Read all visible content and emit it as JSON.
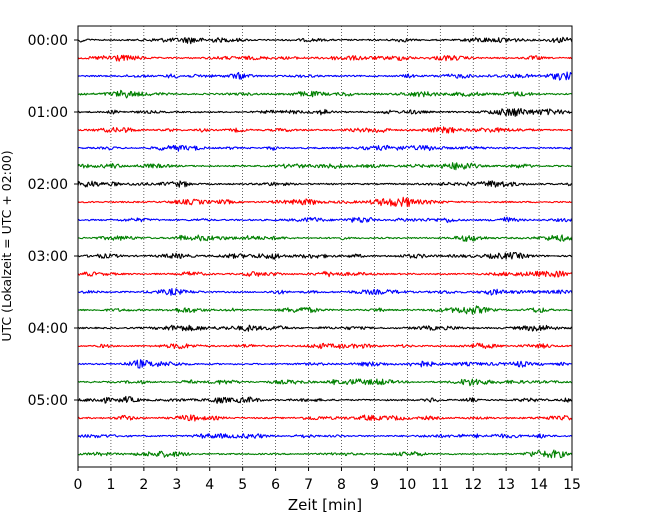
{
  "chart_data": {
    "type": "line",
    "xlabel": "Zeit  [min]",
    "ylabel": "UTC (Lokalzeit = UTC + 02:00)",
    "xlim": [
      0,
      15
    ],
    "x_ticks": [
      "0",
      "1",
      "2",
      "3",
      "4",
      "5",
      "6",
      "7",
      "8",
      "9",
      "10",
      "11",
      "12",
      "13",
      "14",
      "15"
    ],
    "x_grid": true,
    "grid_style": "dotted",
    "y_tick_labels": [
      "00:00",
      "01:00",
      "02:00",
      "03:00",
      "04:00",
      "05:00"
    ],
    "trace_count": 24,
    "trace_interval_minutes": 15,
    "trace_colors": [
      "#000000",
      "#ff0000",
      "#0000ff",
      "#008000"
    ],
    "series": [
      {
        "start": "00:00",
        "color": "#000000"
      },
      {
        "start": "00:15",
        "color": "#ff0000"
      },
      {
        "start": "00:30",
        "color": "#0000ff"
      },
      {
        "start": "00:45",
        "color": "#008000"
      },
      {
        "start": "01:00",
        "color": "#000000"
      },
      {
        "start": "01:15",
        "color": "#ff0000"
      },
      {
        "start": "01:30",
        "color": "#0000ff"
      },
      {
        "start": "01:45",
        "color": "#008000"
      },
      {
        "start": "02:00",
        "color": "#000000"
      },
      {
        "start": "02:15",
        "color": "#ff0000"
      },
      {
        "start": "02:30",
        "color": "#0000ff"
      },
      {
        "start": "02:45",
        "color": "#008000"
      },
      {
        "start": "03:00",
        "color": "#000000"
      },
      {
        "start": "03:15",
        "color": "#ff0000"
      },
      {
        "start": "03:30",
        "color": "#0000ff"
      },
      {
        "start": "03:45",
        "color": "#008000"
      },
      {
        "start": "04:00",
        "color": "#000000"
      },
      {
        "start": "04:15",
        "color": "#ff0000"
      },
      {
        "start": "04:30",
        "color": "#0000ff"
      },
      {
        "start": "04:45",
        "color": "#008000"
      },
      {
        "start": "05:00",
        "color": "#000000"
      },
      {
        "start": "05:15",
        "color": "#ff0000"
      },
      {
        "start": "05:30",
        "color": "#0000ff"
      },
      {
        "start": "05:45",
        "color": "#008000"
      }
    ]
  }
}
